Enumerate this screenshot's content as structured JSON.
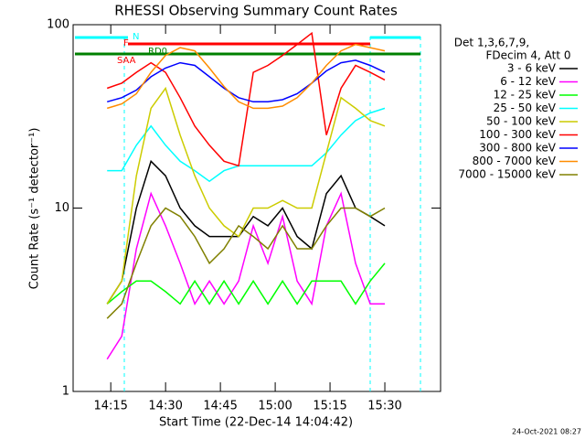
{
  "chart_data": {
    "type": "line",
    "title": "RHESSI Observing Summary Count Rates",
    "xlabel": "Start Time (22-Dec-14 14:04:42)",
    "ylabel": "Count Rate (s⁻¹ detector⁻¹)",
    "info": [
      "Det 1,3,6,7,9,",
      "FDecim 4, Att 0"
    ],
    "flags": [
      "N",
      "F",
      "RD0",
      "SAA"
    ],
    "timestamp": "24-Oct-2021 08:27",
    "log_y": true,
    "xlim": [
      4.7,
      105.25
    ],
    "xticks": [
      {
        "value": 15,
        "label": "14:15"
      },
      {
        "value": 30,
        "label": "14:30"
      },
      {
        "value": 45,
        "label": "14:45"
      },
      {
        "value": 60,
        "label": "15:00"
      },
      {
        "value": 75,
        "label": "15:15"
      },
      {
        "value": 90,
        "label": "15:30"
      }
    ],
    "ylim": [
      1,
      100
    ],
    "yticks": [
      1,
      10,
      100
    ],
    "x": [
      14,
      18,
      22,
      26,
      30,
      34,
      38,
      42,
      46,
      50,
      54,
      58,
      62,
      66,
      70,
      74,
      78,
      82,
      86,
      90
    ],
    "series": [
      {
        "name": "3 - 6 keV",
        "color": "#000000",
        "values": [
          3,
          4,
          10,
          18,
          15,
          10,
          8,
          7,
          7,
          7,
          9,
          8,
          10,
          7,
          6,
          12,
          15,
          10,
          9,
          8
        ]
      },
      {
        "name": "6 - 12 keV",
        "color": "#ff00ff",
        "values": [
          1.5,
          2,
          6,
          12,
          8,
          5,
          3,
          4,
          3,
          4,
          8,
          5,
          9,
          4,
          3,
          8,
          12,
          5,
          3,
          3
        ]
      },
      {
        "name": "12 - 25 keV",
        "color": "#00ff00",
        "values": [
          3,
          3.5,
          4,
          4,
          3.5,
          3,
          4,
          3,
          4,
          3,
          4,
          3,
          4,
          3,
          4,
          4,
          4,
          3,
          4,
          5
        ]
      },
      {
        "name": "25 - 50 keV",
        "color": "#00ffff",
        "values": [
          16,
          16,
          22,
          28,
          22,
          18,
          16,
          14,
          16,
          17,
          17,
          17,
          17,
          17,
          17,
          20,
          25,
          30,
          33,
          35
        ]
      },
      {
        "name": "50 - 100 keV",
        "color": "#cccc00",
        "values": [
          3,
          4,
          15,
          35,
          45,
          25,
          15,
          10,
          8,
          7,
          10,
          10,
          11,
          10,
          10,
          20,
          40,
          35,
          30,
          28
        ]
      },
      {
        "name": "100 - 300 keV",
        "color": "#ff0000",
        "values": [
          45,
          48,
          55,
          62,
          55,
          40,
          28,
          22,
          18,
          17,
          55,
          60,
          68,
          78,
          90,
          25,
          45,
          60,
          55,
          50
        ]
      },
      {
        "name": "300 - 800 keV",
        "color": "#0000ff",
        "values": [
          38,
          40,
          44,
          52,
          58,
          62,
          60,
          52,
          45,
          40,
          38,
          38,
          39,
          42,
          48,
          56,
          62,
          64,
          60,
          55
        ]
      },
      {
        "name": "800 - 7000 keV",
        "color": "#ff8c00",
        "values": [
          35,
          37,
          42,
          55,
          68,
          75,
          72,
          58,
          46,
          38,
          35,
          35,
          36,
          40,
          48,
          60,
          72,
          78,
          75,
          72
        ]
      },
      {
        "name": "7000 - 15000 keV",
        "color": "#808000",
        "values": [
          2.5,
          3,
          5,
          8,
          10,
          9,
          7,
          5,
          6,
          8,
          7,
          6,
          8,
          6,
          6,
          8,
          10,
          10,
          9,
          10
        ]
      }
    ]
  }
}
